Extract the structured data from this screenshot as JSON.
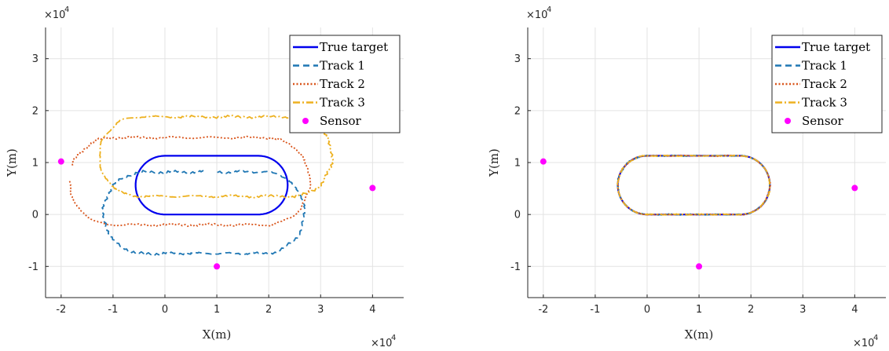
{
  "chart_data": [
    {
      "type": "line",
      "xlabel": "X(m)",
      "ylabel": "Y(m)",
      "x_multiplier": "×10",
      "x_exponent": "4",
      "y_multiplier": "×10",
      "y_exponent": "4",
      "xlim": [
        -2.3,
        4.6
      ],
      "ylim": [
        -1.6,
        3.6
      ],
      "xticks": [
        "-2",
        "-1",
        "0",
        "1",
        "2",
        "3",
        "4"
      ],
      "yticks": [
        "-1",
        "0",
        "1",
        "2",
        "3"
      ],
      "grid": true,
      "legend_position": "top-right",
      "legend": [
        "True target",
        "Track 1",
        "Track 2",
        "Track 3",
        "Sensor"
      ],
      "series": [
        {
          "name": "True target",
          "color": "#0000ee",
          "style": "solid",
          "shape": "stadium",
          "x_left": 0,
          "x_right": 1.8,
          "y_bottom": 0,
          "y_top": 1.13
        },
        {
          "name": "Track 1",
          "color": "#1f77b4",
          "style": "dashed",
          "shape": "stadium",
          "x_left": -0.4,
          "x_right": 1.9,
          "y_bottom": -0.75,
          "y_top": 0.82,
          "gap": "open end near (-0.2,-0.42)"
        },
        {
          "name": "Track 2",
          "color": "#d9541a",
          "style": "dotted",
          "shape": "stadium",
          "x_left": -1.0,
          "x_right": 1.95,
          "y_bottom": -0.2,
          "y_top": 1.48,
          "gap": "open end near (1.2,1.48)"
        },
        {
          "name": "Track 3",
          "color": "#edb120",
          "style": "dashdot",
          "shape": "stadium",
          "x_left": -0.5,
          "x_right": 2.45,
          "y_bottom": 0.35,
          "y_top": 1.88,
          "gap": "open end near (0.05,0.8)"
        }
      ],
      "sensors": [
        {
          "x": -2.0,
          "y": 1.02
        },
        {
          "x": 1.0,
          "y": -1.0
        },
        {
          "x": 4.0,
          "y": 0.51
        }
      ],
      "sensor_color": "#ff00ff"
    },
    {
      "type": "line",
      "xlabel": "X(m)",
      "ylabel": "Y(m)",
      "x_multiplier": "×10",
      "x_exponent": "4",
      "y_multiplier": "×10",
      "y_exponent": "4",
      "xlim": [
        -2.3,
        4.6
      ],
      "ylim": [
        -1.6,
        3.6
      ],
      "xticks": [
        "-2",
        "-1",
        "0",
        "1",
        "2",
        "3",
        "4"
      ],
      "yticks": [
        "-1",
        "0",
        "1",
        "2",
        "3"
      ],
      "grid": true,
      "legend_position": "top-right",
      "legend": [
        "True target",
        "Track 1",
        "Track 2",
        "Track 3",
        "Sensor"
      ],
      "series": [
        {
          "name": "True target",
          "color": "#0000ee",
          "style": "solid",
          "shape": "stadium",
          "x_left": 0,
          "x_right": 1.8,
          "y_bottom": 0,
          "y_top": 1.13
        },
        {
          "name": "Track 1",
          "color": "#1f77b4",
          "style": "dashed",
          "shape": "stadium",
          "x_left": 0,
          "x_right": 1.8,
          "y_bottom": 0,
          "y_top": 1.13
        },
        {
          "name": "Track 2",
          "color": "#d9541a",
          "style": "dotted",
          "shape": "stadium",
          "x_left": 0,
          "x_right": 1.8,
          "y_bottom": 0,
          "y_top": 1.13
        },
        {
          "name": "Track 3",
          "color": "#edb120",
          "style": "dashdot",
          "shape": "stadium",
          "x_left": 0,
          "x_right": 1.8,
          "y_bottom": 0,
          "y_top": 1.13
        }
      ],
      "sensors": [
        {
          "x": -2.0,
          "y": 1.02
        },
        {
          "x": 1.0,
          "y": -1.0
        },
        {
          "x": 4.0,
          "y": 0.51
        }
      ],
      "sensor_color": "#ff00ff"
    }
  ]
}
